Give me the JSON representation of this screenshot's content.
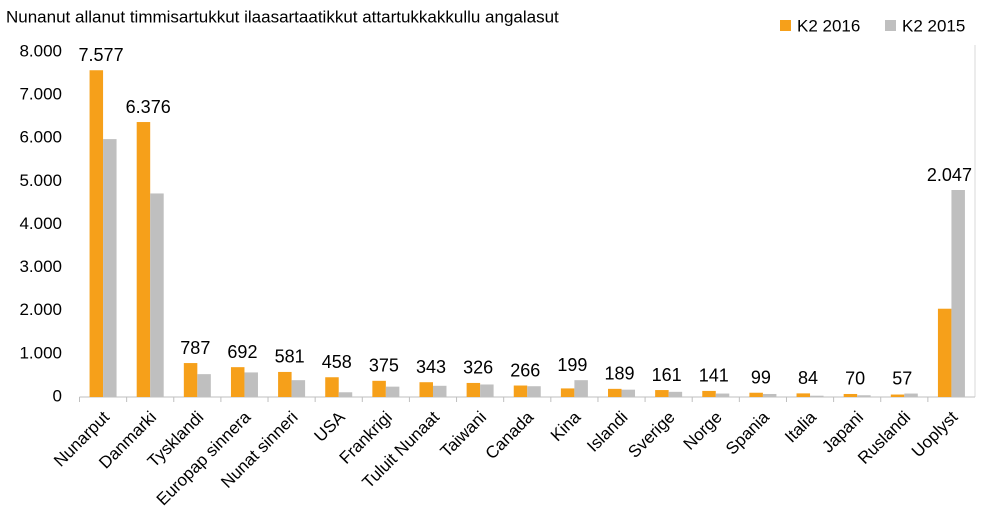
{
  "chart_data": {
    "type": "bar",
    "title": "Nunanut allanut timmisartukkut ilaasartaatikkut attartukkakkullu angalasut",
    "categories": [
      "Nunarput",
      "Danmarki",
      "Tysklandi",
      "Europap sinnera",
      "Nunat sinneri",
      "USA",
      "Frankrigi",
      "Tuluit Nunaat",
      "Taiwani",
      "Canada",
      "Kina",
      "Islandi",
      "Sverige",
      "Norge",
      "Spania",
      "Italia",
      "Japani",
      "Ruslandi",
      "Uoplyst"
    ],
    "series": [
      {
        "name": "K2 2016",
        "color": "#f6a01a",
        "values": [
          7577,
          6376,
          787,
          692,
          581,
          458,
          375,
          343,
          326,
          266,
          199,
          189,
          161,
          141,
          99,
          84,
          70,
          57,
          2047
        ],
        "value_labels": [
          "7.577",
          "6.376",
          "787",
          "692",
          "581",
          "458",
          "375",
          "343",
          "326",
          "266",
          "199",
          "189",
          "161",
          "141",
          "99",
          "84",
          "70",
          "57",
          "2.047"
        ]
      },
      {
        "name": "K2 2015",
        "color": "#bfbfbf",
        "values": [
          5980,
          4720,
          530,
          570,
          390,
          110,
          240,
          260,
          290,
          250,
          390,
          170,
          120,
          80,
          70,
          30,
          40,
          80,
          4800
        ]
      }
    ],
    "ylim": [
      0,
      8000
    ],
    "yticks": [
      0,
      {
        "value": 1000,
        "label": "1.000"
      },
      {
        "value": 2000,
        "label": "2.000"
      },
      {
        "value": 3000,
        "label": "3.000"
      },
      {
        "value": 4000,
        "label": "4.000"
      },
      {
        "value": 5000,
        "label": "5.000"
      },
      {
        "value": 6000,
        "label": "6.000"
      },
      {
        "value": 7000,
        "label": "7.000"
      },
      {
        "value": 8000,
        "label": "8.000"
      }
    ],
    "grid": false
  }
}
